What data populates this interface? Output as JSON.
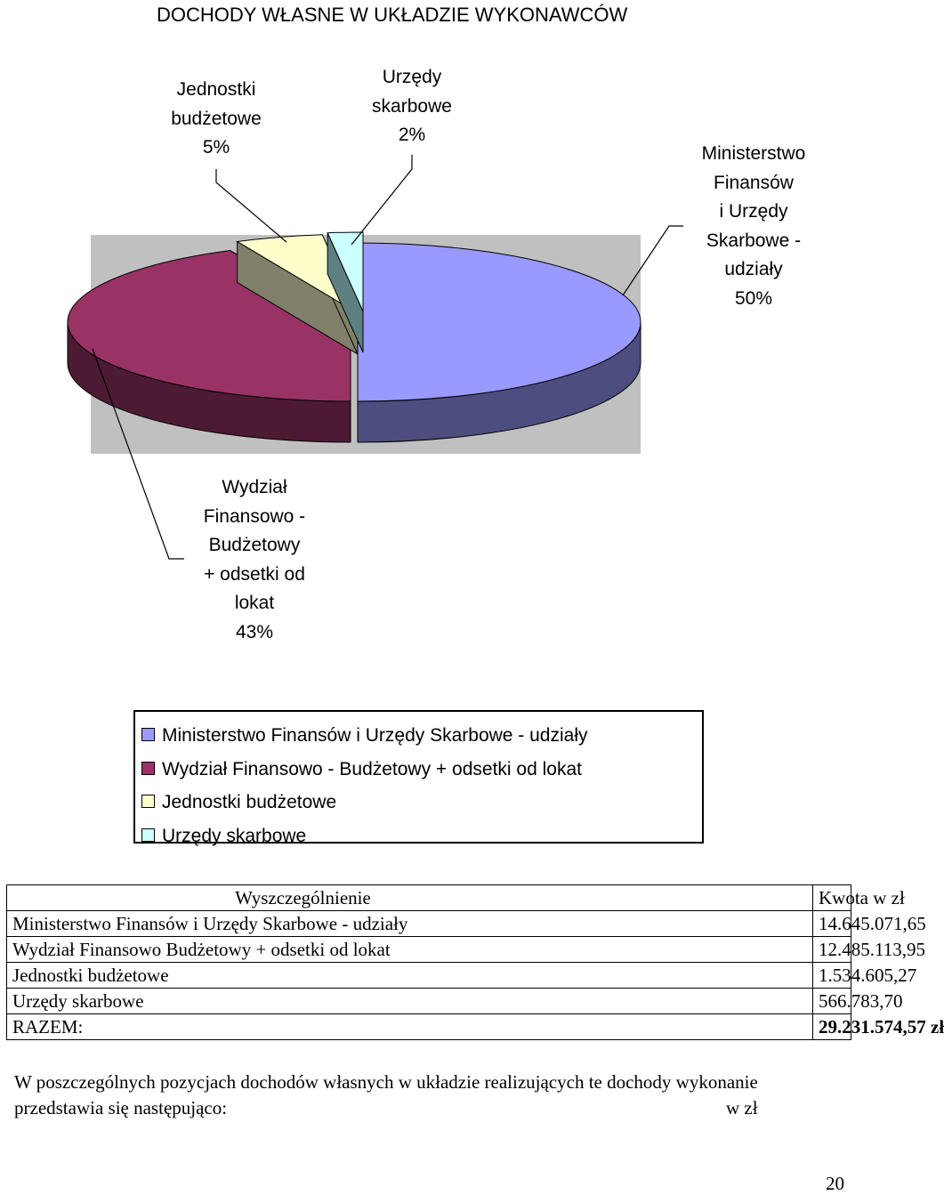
{
  "title": "DOCHODY WŁASNE W UKŁADZIE WYKONAWCÓW",
  "chart_data": {
    "type": "pie",
    "title": "DOCHODY WŁASNE W UKŁADZIE WYKONAWCÓW",
    "categories": [
      "Ministerstwo Finansów i Urzędy Skarbowe - udziały",
      "Wydział Finansowo - Budżetowy + odsetki od lokat",
      "Jednostki budżetowe",
      "Urzędy skarbowe"
    ],
    "values": [
      50,
      43,
      5,
      2
    ],
    "value_unit": "%",
    "slice_labels": [
      "Ministerstwo\nFinansów\ni Urzędy\nSkarbowe -\nudziały\n50%",
      "Wydział\nFinansowo -\nBudżetowy\n+ odsetki od\nlokat\n43%",
      "Jednostki\nbudżetowe\n5%",
      "Urzędy\nskarbowe\n2%"
    ],
    "colors": [
      "#9999ff",
      "#993366",
      "#ffffcc",
      "#ccffff"
    ],
    "side_colors": [
      "#4d4d80",
      "#4d1a33",
      "#80806a",
      "#5e8080"
    ],
    "plot_background": "#c0c0c0",
    "legend_position": "bottom",
    "exploded": [
      false,
      true,
      true,
      true
    ]
  },
  "table": {
    "header": {
      "name": "Wyszczególnienie",
      "amount": "Kwota w zł"
    },
    "rows": [
      {
        "name": "Ministerstwo Finansów i Urzędy Skarbowe - udziały",
        "amount": "14.645.071,65"
      },
      {
        "name": "Wydział Finansowo Budżetowy + odsetki od lokat",
        "amount": "12.485.113,95"
      },
      {
        "name": "Jednostki budżetowe",
        "amount": "1.534.605,27"
      },
      {
        "name": "Urzędy skarbowe",
        "amount": "566.783,70"
      }
    ],
    "total": {
      "name": "RAZEM:",
      "amount": "29.231.574,57 zł"
    }
  },
  "footnote": {
    "text": "W poszczególnych pozycjach dochodów własnych w układzie realizujących te dochody wykonanie przedstawia się następująco:",
    "unit": "w zł"
  },
  "page_number": "20"
}
